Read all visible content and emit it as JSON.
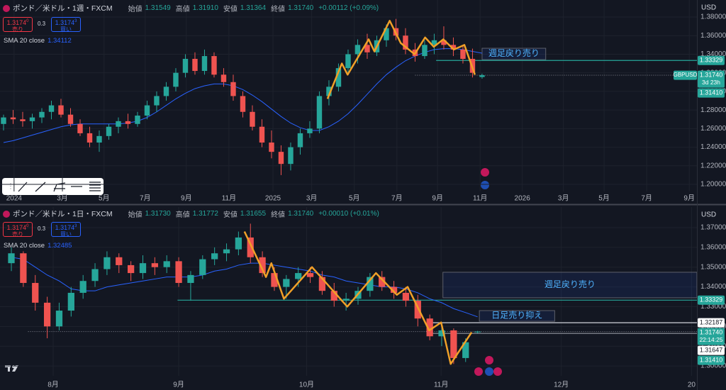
{
  "chart_data": [
    {
      "type": "candlestick",
      "title": "ポンド／米ドル・1週・FXCM",
      "currency": "USD",
      "ohlc_legend": [
        [
          "始値",
          "1.31549"
        ],
        [
          "高値",
          "1.31910"
        ],
        [
          "安値",
          "1.31364"
        ],
        [
          "終値",
          "1.31740"
        ]
      ],
      "change": "+0.00112 (+0.09%)",
      "sell": {
        "price": "1.3174",
        "sup": "0",
        "label": "売り"
      },
      "spread": "0.3",
      "buy": {
        "price": "1.3174",
        "sup": "3",
        "label": "買い"
      },
      "up_color": "#26a69a",
      "down_color": "#ef5350",
      "x": [
        0,
        2,
        4,
        6,
        8,
        10,
        12,
        14,
        16,
        18,
        20,
        22,
        24,
        26,
        28,
        30,
        32,
        34,
        36,
        38,
        40,
        42,
        44,
        46,
        48,
        50,
        52,
        54,
        56,
        58,
        60,
        62,
        64,
        66,
        68,
        70,
        72,
        74,
        76,
        78,
        80,
        82,
        84,
        86,
        88,
        90,
        92,
        94,
        96,
        98,
        100
      ],
      "open": [
        1.265,
        1.272,
        1.27,
        1.268,
        1.272,
        1.278,
        1.285,
        1.275,
        1.265,
        1.255,
        1.245,
        1.252,
        1.262,
        1.268,
        1.265,
        1.274,
        1.285,
        1.295,
        1.305,
        1.32,
        1.335,
        1.322,
        1.338,
        1.318,
        1.31,
        1.295,
        1.278,
        1.262,
        1.245,
        1.235,
        1.222,
        1.24,
        1.255,
        1.26,
        1.295,
        1.305,
        1.325,
        1.34,
        1.35,
        1.342,
        1.355,
        1.368,
        1.36,
        1.345,
        1.338,
        1.35,
        1.355,
        1.35,
        1.345,
        1.335,
        1.31549
      ],
      "high": [
        1.275,
        1.28,
        1.278,
        1.276,
        1.282,
        1.29,
        1.292,
        1.282,
        1.27,
        1.262,
        1.258,
        1.265,
        1.272,
        1.276,
        1.278,
        1.29,
        1.3,
        1.31,
        1.325,
        1.34,
        1.342,
        1.345,
        1.342,
        1.325,
        1.318,
        1.3,
        1.285,
        1.27,
        1.258,
        1.242,
        1.245,
        1.26,
        1.268,
        1.3,
        1.312,
        1.33,
        1.345,
        1.356,
        1.362,
        1.36,
        1.372,
        1.378,
        1.368,
        1.352,
        1.355,
        1.362,
        1.37,
        1.358,
        1.35,
        1.346,
        1.3191
      ],
      "low": [
        1.258,
        1.265,
        1.262,
        1.26,
        1.266,
        1.27,
        1.272,
        1.262,
        1.252,
        1.24,
        1.235,
        1.248,
        1.255,
        1.26,
        1.262,
        1.27,
        1.278,
        1.29,
        1.3,
        1.315,
        1.318,
        1.318,
        1.315,
        1.305,
        1.29,
        1.272,
        1.258,
        1.24,
        1.228,
        1.21,
        1.215,
        1.232,
        1.25,
        1.255,
        1.285,
        1.3,
        1.318,
        1.33,
        1.335,
        1.338,
        1.348,
        1.355,
        1.34,
        1.332,
        1.335,
        1.34,
        1.345,
        1.338,
        1.33,
        1.315,
        1.31364
      ],
      "close": [
        1.272,
        1.27,
        1.268,
        1.272,
        1.278,
        1.285,
        1.275,
        1.265,
        1.255,
        1.245,
        1.252,
        1.262,
        1.268,
        1.265,
        1.274,
        1.285,
        1.295,
        1.305,
        1.32,
        1.335,
        1.322,
        1.338,
        1.318,
        1.31,
        1.295,
        1.278,
        1.262,
        1.245,
        1.235,
        1.222,
        1.24,
        1.255,
        1.26,
        1.295,
        1.305,
        1.325,
        1.34,
        1.35,
        1.342,
        1.355,
        1.368,
        1.36,
        1.345,
        1.338,
        1.35,
        1.355,
        1.35,
        1.345,
        1.335,
        1.32,
        1.3174
      ],
      "indicator": {
        "name": "SMA 20 close",
        "value": "1.34112",
        "color": "#2962ff",
        "values": [
          1.245,
          1.247,
          1.25,
          1.253,
          1.256,
          1.259,
          1.262,
          1.264,
          1.265,
          1.265,
          1.265,
          1.265,
          1.265,
          1.266,
          1.268,
          1.272,
          1.278,
          1.285,
          1.292,
          1.298,
          1.303,
          1.306,
          1.308,
          1.308,
          1.306,
          1.302,
          1.296,
          1.289,
          1.281,
          1.273,
          1.266,
          1.261,
          1.258,
          1.258,
          1.262,
          1.268,
          1.276,
          1.286,
          1.297,
          1.308,
          1.318,
          1.326,
          1.333,
          1.338,
          1.342,
          1.345,
          1.346,
          1.346,
          1.345,
          1.343,
          1.34112
        ]
      },
      "zigzag": {
        "color": "#f0a028",
        "x": [
          67.7,
          70.7,
          71.9,
          76.3,
          77.5,
          80.7,
          83,
          85.9,
          88.1,
          89.9,
          91.9,
          94.1,
          96.3,
          98.5
        ],
        "y": [
          1.292,
          1.33,
          1.318,
          1.356,
          1.343,
          1.376,
          1.352,
          1.34,
          1.358,
          1.348,
          1.356,
          1.345,
          1.35,
          1.318
        ]
      },
      "xlim": [
        -0.74,
        144.9
      ],
      "xticks": [
        {
          "value": 2.2,
          "label": "2024"
        },
        {
          "value": 12.3,
          "label": "3月"
        },
        {
          "value": 21,
          "label": "5月"
        },
        {
          "value": 29.6,
          "label": "7月"
        },
        {
          "value": 38.2,
          "label": "9月"
        },
        {
          "value": 47.1,
          "label": "11月"
        },
        {
          "value": 56.3,
          "label": "2025"
        },
        {
          "value": 64.4,
          "label": "3月"
        },
        {
          "value": 73.3,
          "label": "5月"
        },
        {
          "value": 82.2,
          "label": "7月"
        },
        {
          "value": 90.7,
          "label": "9月"
        },
        {
          "value": 99.6,
          "label": "11月"
        },
        {
          "value": 108.4,
          "label": "2026"
        },
        {
          "value": 117,
          "label": "3月"
        },
        {
          "value": 125.5,
          "label": "5月"
        },
        {
          "value": 134.4,
          "label": "7月"
        },
        {
          "value": 143.3,
          "label": "9月"
        }
      ],
      "ylim": [
        1.1924,
        1.3983
      ],
      "yticks": [
        {
          "value": 1.2,
          "label": "1.20000"
        },
        {
          "value": 1.22,
          "label": "1.22000"
        },
        {
          "value": 1.24,
          "label": "1.24000"
        },
        {
          "value": 1.26,
          "label": "1.26000"
        },
        {
          "value": 1.28,
          "label": "1.28000"
        },
        {
          "value": 1.3,
          "label": "1.30000"
        },
        {
          "value": 1.32,
          "label": "1.32000"
        },
        {
          "value": 1.34,
          "label": "1.34000"
        },
        {
          "value": 1.36,
          "label": "1.36000"
        },
        {
          "value": 1.38,
          "label": "1.38000"
        }
      ],
      "hlines": [
        {
          "value": 1.33329,
          "x_start": 90.4,
          "color": "#26a69a",
          "dash": false
        },
        {
          "value": 1.3174,
          "x_start": 86,
          "color": "#787b86",
          "dash": true
        }
      ],
      "annotations": [
        {
          "text": "週足戻り売り",
          "x": [
            100,
            113.3
          ],
          "y": [
            1.3342,
            1.3464
          ],
          "color": "#4fb3ff"
        }
      ],
      "price_tags": [
        {
          "value": 1.33329,
          "label": "1.33329",
          "color": "#26a69a",
          "text_color": "#ffffff"
        },
        {
          "value": 1.3174,
          "label": "1.31740",
          "sub": "3d 23h",
          "symbol": "GBPUSD",
          "color": "#26a69a",
          "text_color": "#ffffff"
        },
        {
          "value": 1.3141,
          "label": "1.31410",
          "color": "#26a69a",
          "text_color": "#ffffff"
        }
      ]
    },
    {
      "type": "candlestick",
      "title": "ポンド／米ドル・1日・FXCM",
      "currency": "USD",
      "ohlc_legend": [
        [
          "始値",
          "1.31730"
        ],
        [
          "高値",
          "1.31772"
        ],
        [
          "安値",
          "1.31655"
        ],
        [
          "終値",
          "1.31740"
        ]
      ],
      "change": "+0.00010 (+0.01%)",
      "sell": {
        "price": "1.3174",
        "sup": "0",
        "label": "売り"
      },
      "spread": "0.3",
      "buy": {
        "price": "1.3174",
        "sup": "3",
        "label": "買い"
      },
      "up_color": "#26a69a",
      "down_color": "#ef5350",
      "x": [
        -7,
        -5,
        -3,
        -1,
        1,
        3,
        5,
        7,
        9,
        11,
        13,
        15,
        17,
        19,
        21,
        23,
        25,
        27,
        29,
        31,
        33,
        35,
        37,
        39,
        41,
        43,
        45,
        47,
        49,
        51,
        53,
        55,
        57,
        59,
        61,
        63,
        65,
        67,
        69,
        71
      ],
      "open": [
        1.352,
        1.357,
        1.342,
        1.332,
        1.32,
        1.328,
        1.337,
        1.343,
        1.349,
        1.355,
        1.351,
        1.347,
        1.352,
        1.35,
        1.353,
        1.342,
        1.346,
        1.354,
        1.357,
        1.359,
        1.365,
        1.355,
        1.347,
        1.34,
        1.344,
        1.347,
        1.345,
        1.338,
        1.333,
        1.334,
        1.338,
        1.345,
        1.34,
        1.337,
        1.333,
        1.324,
        1.315,
        1.318,
        1.304,
        1.3173
      ],
      "high": [
        1.36,
        1.358,
        1.346,
        1.335,
        1.332,
        1.34,
        1.346,
        1.352,
        1.358,
        1.357,
        1.353,
        1.356,
        1.355,
        1.356,
        1.355,
        1.348,
        1.356,
        1.36,
        1.362,
        1.368,
        1.372,
        1.358,
        1.35,
        1.346,
        1.35,
        1.35,
        1.348,
        1.342,
        1.337,
        1.34,
        1.347,
        1.348,
        1.343,
        1.34,
        1.336,
        1.326,
        1.322,
        1.319,
        1.314,
        1.31772
      ],
      "low": [
        1.348,
        1.34,
        1.328,
        1.314,
        1.318,
        1.325,
        1.334,
        1.34,
        1.346,
        1.347,
        1.343,
        1.344,
        1.346,
        1.347,
        1.34,
        1.333,
        1.344,
        1.351,
        1.353,
        1.356,
        1.352,
        1.345,
        1.338,
        1.334,
        1.34,
        1.342,
        1.336,
        1.33,
        1.328,
        1.331,
        1.335,
        1.338,
        1.334,
        1.33,
        1.32,
        1.313,
        1.31,
        1.301,
        1.302,
        1.31655
      ],
      "close": [
        1.357,
        1.342,
        1.332,
        1.32,
        1.328,
        1.337,
        1.343,
        1.349,
        1.355,
        1.351,
        1.347,
        1.352,
        1.35,
        1.353,
        1.342,
        1.346,
        1.354,
        1.357,
        1.359,
        1.365,
        1.355,
        1.347,
        1.34,
        1.344,
        1.347,
        1.345,
        1.338,
        1.333,
        1.334,
        1.338,
        1.345,
        1.34,
        1.337,
        1.333,
        1.324,
        1.315,
        1.318,
        1.304,
        1.312,
        1.3174
      ],
      "indicator": {
        "name": "SMA 20 close",
        "value": "1.32485",
        "color": "#2962ff",
        "values": [
          1.355,
          1.354,
          1.35,
          1.346,
          1.343,
          1.339,
          1.338,
          1.338,
          1.34,
          1.341,
          1.342,
          1.343,
          1.344,
          1.345,
          1.345,
          1.345,
          1.346,
          1.348,
          1.349,
          1.351,
          1.352,
          1.352,
          1.351,
          1.35,
          1.349,
          1.348,
          1.346,
          1.345,
          1.343,
          1.342,
          1.341,
          1.34,
          1.34,
          1.339,
          1.337,
          1.334,
          1.332,
          1.329,
          1.327,
          1.32485
        ]
      },
      "zigzag": {
        "color": "#f0a028",
        "x": [
          32,
          35.6,
          36.5,
          38.6,
          43.3,
          49.2,
          54,
          57.5,
          59.3,
          62.9,
          64.9,
          66.5,
          70
        ],
        "y": [
          1.368,
          1.345,
          1.352,
          1.334,
          1.35,
          1.33,
          1.347,
          1.336,
          1.34,
          1.318,
          1.322,
          1.301,
          1.317
        ]
      },
      "xlim": [
        -8.9,
        107.7
      ],
      "xticks": [
        {
          "value": 0,
          "label": "8月"
        },
        {
          "value": 21,
          "label": "9月"
        },
        {
          "value": 42.4,
          "label": "10月"
        },
        {
          "value": 64.9,
          "label": "11月"
        },
        {
          "value": 85,
          "label": "12月"
        },
        {
          "value": 106.8,
          "label": "20"
        }
      ],
      "ylim": [
        1.295,
        1.3804
      ],
      "yticks": [
        {
          "value": 1.3,
          "label": "1.30000"
        },
        {
          "value": 1.31,
          "label": "1.31000"
        },
        {
          "value": 1.32,
          "label": "1.32000"
        },
        {
          "value": 1.33,
          "label": "1.33000"
        },
        {
          "value": 1.34,
          "label": "1.34000"
        },
        {
          "value": 1.35,
          "label": "1.35000"
        },
        {
          "value": 1.36,
          "label": "1.36000"
        },
        {
          "value": 1.37,
          "label": "1.37000"
        }
      ],
      "hlines": [
        {
          "value": 1.33329,
          "x_start": 20.8,
          "color": "#26a69a",
          "dash": false
        },
        {
          "value": 1.32187,
          "x_start": 63.2,
          "color": "#d1d4dc",
          "dash": false
        },
        {
          "value": 1.3174,
          "x_start": -4.2,
          "color": "#787b86",
          "dash": true
        },
        {
          "value": 1.31647,
          "x_start": 63.5,
          "color": "#9598a1",
          "dash": false
        }
      ],
      "annotations": [
        {
          "text": "週足戻り売り",
          "x": [
            65.2,
            107.7
          ],
          "y": [
            1.3345,
            1.3474
          ],
          "color": "#4fb3ff"
        },
        {
          "text": "日足売り抑え",
          "x": [
            71.3,
            83.9
          ],
          "y": [
            1.3226,
            1.328
          ],
          "color": "#4fb3ff"
        }
      ],
      "price_tags": [
        {
          "value": 1.33329,
          "label": "1.33329",
          "color": "#26a69a",
          "text_color": "#ffffff"
        },
        {
          "value": 1.32187,
          "label": "1.32187",
          "color": "#ffffff",
          "text_color": "#131722"
        },
        {
          "value": 1.3174,
          "label": "1.31740",
          "sub": "22:14:25",
          "color": "#26a69a",
          "text_color": "#ffffff"
        },
        {
          "value": 1.31647,
          "label": "1.31647",
          "color": "#ffffff",
          "text_color": "#131722"
        },
        {
          "value": 1.3141,
          "label": "1.31410",
          "color": "#26a69a",
          "text_color": "#ffffff"
        }
      ]
    }
  ]
}
